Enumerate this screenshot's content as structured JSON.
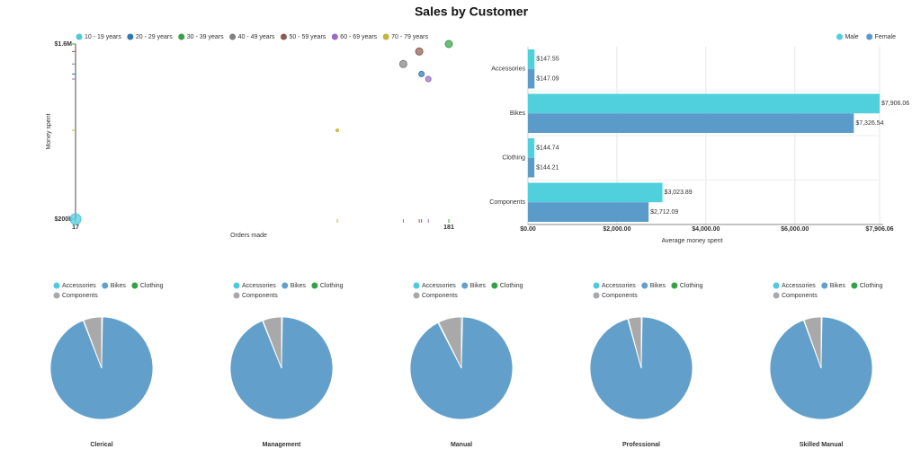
{
  "title": "Sales by Customer",
  "chart_data": [
    {
      "type": "scatter",
      "xlabel": "Orders made",
      "ylabel": "Money spent",
      "xlim": [
        17,
        181
      ],
      "ylim": [
        200000,
        1600000
      ],
      "xticks": [
        17,
        181
      ],
      "yticks": [
        {
          "value": 200000,
          "label": "$200k"
        },
        {
          "value": 1600000,
          "label": "$1.6M"
        }
      ],
      "legend": "top-left",
      "series": [
        {
          "name": "10 - 19 years",
          "color": "#4fc9dc",
          "x": [
            17
          ],
          "values": [
            200000
          ],
          "sizes": [
            6
          ]
        },
        {
          "name": "20 - 29 years",
          "color": "#2f78b4",
          "x": [
            169
          ],
          "values": [
            1360000
          ],
          "sizes": [
            3
          ]
        },
        {
          "name": "30 - 39 years",
          "color": "#36a047",
          "x": [
            181
          ],
          "values": [
            1600000
          ],
          "sizes": [
            4
          ]
        },
        {
          "name": "40 - 49 years",
          "color": "#808080",
          "x": [
            161
          ],
          "values": [
            1440000
          ],
          "sizes": [
            4
          ]
        },
        {
          "name": "50 - 59 years",
          "color": "#8c5a4f",
          "x": [
            168
          ],
          "values": [
            1540000
          ],
          "sizes": [
            4
          ]
        },
        {
          "name": "60 - 69 years",
          "color": "#9a6bc4",
          "x": [
            172
          ],
          "values": [
            1320000
          ],
          "sizes": [
            3
          ]
        },
        {
          "name": "70 - 79 years",
          "color": "#c4b63a",
          "x": [
            132
          ],
          "values": [
            910000
          ],
          "sizes": [
            1.5
          ]
        }
      ]
    },
    {
      "type": "bar",
      "orientation": "horizontal",
      "xlabel": "Average money spent",
      "categories": [
        "Accessories",
        "Bikes",
        "Clothing",
        "Components"
      ],
      "xlim": [
        0,
        7906.06
      ],
      "xticks": [
        {
          "value": 0,
          "label": "$0.00"
        },
        {
          "value": 2000,
          "label": "$2,000.00"
        },
        {
          "value": 4000,
          "label": "$4,000.00"
        },
        {
          "value": 6000,
          "label": "$6,000.00"
        },
        {
          "value": 7906.06,
          "label": "$7,906.06"
        }
      ],
      "grid": true,
      "legend": "top-right",
      "series": [
        {
          "name": "Male",
          "color": "#4fd0dc",
          "values": [
            147.55,
            7906.06,
            144.74,
            3023.89
          ],
          "value_labels": [
            "$147.55",
            "$7,906.06",
            "$144.74",
            "$3,023.89"
          ]
        },
        {
          "name": "Female",
          "color": "#5b9bc9",
          "values": [
            147.09,
            7326.54,
            144.21,
            2712.09
          ],
          "value_labels": [
            "$147.09",
            "$7,326.54",
            "$144.21",
            "$2,712.09"
          ]
        }
      ]
    },
    {
      "type": "pie",
      "title": "Clerical",
      "categories": [
        "Accessories",
        "Bikes",
        "Clothing",
        "Components"
      ],
      "colors": [
        "#4fc9dc",
        "#62a0cb",
        "#36a047",
        "#a9a9a9"
      ],
      "values": [
        0.3,
        93.8,
        0.2,
        5.7
      ],
      "legend": "top-left"
    },
    {
      "type": "pie",
      "title": "Management",
      "categories": [
        "Accessories",
        "Bikes",
        "Clothing",
        "Components"
      ],
      "colors": [
        "#4fc9dc",
        "#62a0cb",
        "#36a047",
        "#a9a9a9"
      ],
      "values": [
        0.3,
        93.6,
        0.2,
        5.9
      ],
      "legend": "top-left"
    },
    {
      "type": "pie",
      "title": "Manual",
      "categories": [
        "Accessories",
        "Bikes",
        "Clothing",
        "Components"
      ],
      "colors": [
        "#4fc9dc",
        "#62a0cb",
        "#36a047",
        "#a9a9a9"
      ],
      "values": [
        0.4,
        92.0,
        0.3,
        7.3
      ],
      "legend": "top-left"
    },
    {
      "type": "pie",
      "title": "Professional",
      "categories": [
        "Accessories",
        "Bikes",
        "Clothing",
        "Components"
      ],
      "colors": [
        "#4fc9dc",
        "#62a0cb",
        "#36a047",
        "#a9a9a9"
      ],
      "values": [
        0.3,
        95.4,
        0.2,
        4.1
      ],
      "legend": "top-left"
    },
    {
      "type": "pie",
      "title": "Skilled Manual",
      "categories": [
        "Accessories",
        "Bikes",
        "Clothing",
        "Components"
      ],
      "colors": [
        "#4fc9dc",
        "#62a0cb",
        "#36a047",
        "#a9a9a9"
      ],
      "values": [
        0.3,
        94.1,
        0.2,
        5.4
      ],
      "legend": "top-left"
    }
  ]
}
